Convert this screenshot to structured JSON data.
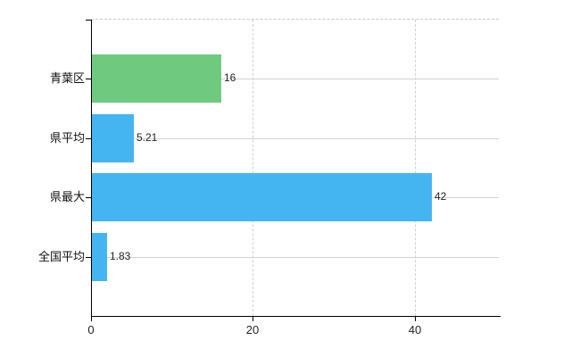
{
  "chart_data": {
    "type": "bar",
    "orientation": "horizontal",
    "title": "",
    "xlabel": "",
    "ylabel": "",
    "categories": [
      "青葉区",
      "県平均",
      "県最大",
      "全国平均"
    ],
    "values": [
      16,
      5.21,
      42,
      1.83
    ],
    "value_labels": [
      "16",
      "5.21",
      "42",
      "1.83"
    ],
    "bar_colors": [
      "#6fca80",
      "#44b5f0",
      "#44b5f0",
      "#44b5f0"
    ],
    "xlim": [
      0,
      50.5
    ],
    "x_ticks": [
      0,
      20,
      40
    ],
    "x_tick_labels": [
      "0",
      "20",
      "40"
    ],
    "grid": "on",
    "legend": "none"
  },
  "colors": {
    "background": "#ffffff",
    "axis": "#000000",
    "row_gridline": "#d2d2d2",
    "vertical_gridline": "#d0d0d0",
    "top_border": "#c9c9c9",
    "text": "#222222",
    "green_bar": "#6fca80",
    "blue_bar": "#44b5f0"
  }
}
